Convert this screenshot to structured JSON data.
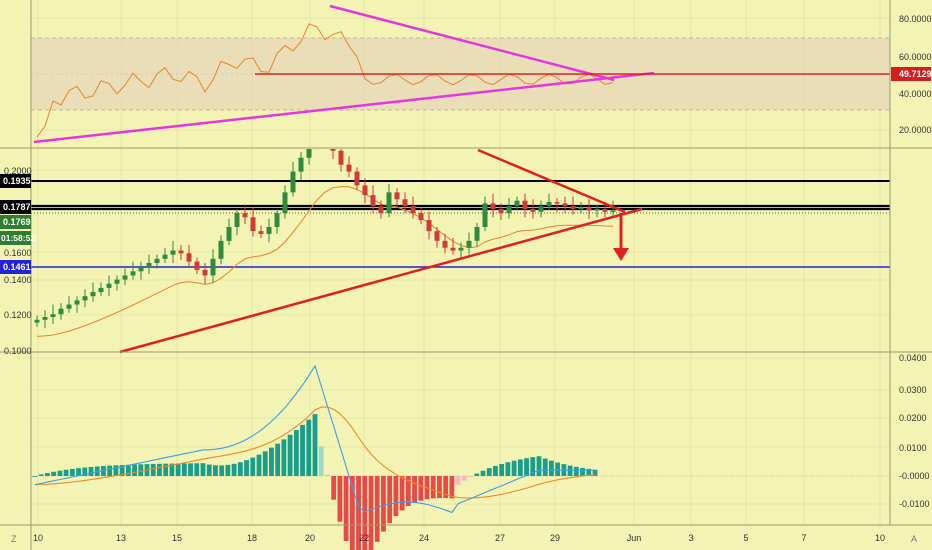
{
  "colors": {
    "background": "#f3f3b4",
    "grid": "#dcdc9c",
    "separator": "#9a9a70",
    "bull": "#2e8b3d",
    "bear": "#d23a3a",
    "ma": "#e8832c",
    "rsi": "#e8832c",
    "rsi_band": "#e6d7b8",
    "trend_magenta": "#e535e0",
    "trend_red": "#e02020",
    "level_black": "#000000",
    "level_blue": "#2222dd",
    "macd": "#3aa0e6",
    "signal": "#f08a28",
    "hist_up": "#1a9e8c",
    "hist_up_light": "#9bd8cf",
    "hist_down": "#e84a4a",
    "hist_down_light": "#f5b8c0"
  },
  "rsi_panel": {
    "ticks": [
      "80.0000",
      "60.0000",
      "40.0000",
      "20.0000"
    ],
    "current_label": "49.7129",
    "band_top": 70,
    "band_bottom": 30,
    "mid": 50
  },
  "price_panel": {
    "ticks": [
      "0.2000",
      "0.1600",
      "0.1400",
      "0.1200",
      "0.1000"
    ],
    "tags": {
      "resistance_upper": "0.1935",
      "resistance": "0.1787",
      "last_price": "0.1769",
      "countdown": "01:58:52",
      "support": "0.1461"
    }
  },
  "macd_panel": {
    "ticks": [
      "0.0400",
      "0.0300",
      "0.0200",
      "0.0100",
      "-0.0000",
      "-0.0100"
    ]
  },
  "x_axis": {
    "labels": [
      "10",
      "13",
      "15",
      "18",
      "20",
      "22",
      "24",
      "27",
      "29",
      "Jun",
      "3",
      "5",
      "7",
      "10"
    ]
  },
  "corner_buttons": {
    "left": "Z",
    "right": "A"
  },
  "chart_data": {
    "type": "candlestick",
    "title": "",
    "x_type": "date",
    "x_labels": [
      "10",
      "13",
      "15",
      "18",
      "20",
      "22",
      "24",
      "27",
      "29",
      "Jun",
      "3",
      "5",
      "7",
      "10"
    ],
    "price": {
      "y_ticks": [
        0.2,
        0.16,
        0.14,
        0.12,
        0.1
      ],
      "levels": [
        {
          "value": 0.1935,
          "color": "black"
        },
        {
          "value": 0.1787,
          "color": "black"
        },
        {
          "value": 0.1461,
          "color": "blue"
        }
      ],
      "last_price": 0.1769,
      "closes": [
        0.098,
        0.1,
        0.102,
        0.106,
        0.109,
        0.112,
        0.115,
        0.118,
        0.121,
        0.124,
        0.127,
        0.13,
        0.133,
        0.136,
        0.139,
        0.142,
        0.145,
        0.148,
        0.146,
        0.14,
        0.134,
        0.13,
        0.142,
        0.155,
        0.165,
        0.175,
        0.172,
        0.162,
        0.16,
        0.165,
        0.175,
        0.19,
        0.205,
        0.215,
        0.225,
        0.232,
        0.228,
        0.22,
        0.21,
        0.205,
        0.195,
        0.188,
        0.18,
        0.175,
        0.19,
        0.185,
        0.18,
        0.175,
        0.17,
        0.162,
        0.155,
        0.15,
        0.148,
        0.15,
        0.155,
        0.165,
        0.182,
        0.178,
        0.175,
        0.18,
        0.184,
        0.178,
        0.176,
        0.18,
        0.183,
        0.182,
        0.18,
        0.178,
        0.179,
        0.177,
        0.178,
        0.176,
        0.1769
      ]
    },
    "rsi": {
      "y_ticks": [
        80,
        60,
        40,
        20
      ],
      "last": 49.7129,
      "band": [
        30,
        70
      ]
    },
    "macd": {
      "y_ticks": [
        0.04,
        0.03,
        0.02,
        0.01,
        0,
        -0.01
      ],
      "peak_macd": 0.038,
      "peak_signal": 0.031,
      "trough_macd": -0.0135
    }
  }
}
